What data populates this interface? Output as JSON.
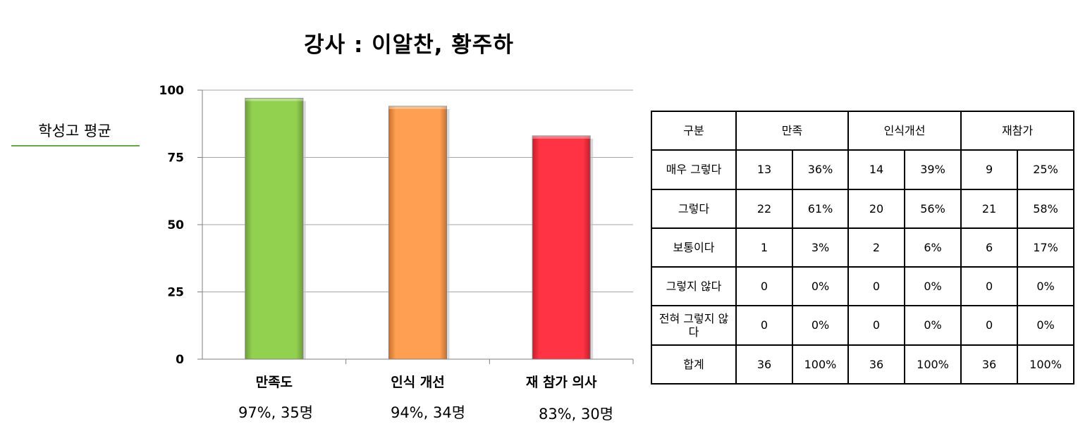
{
  "chart_data": {
    "type": "bar",
    "title": "강사 : 이알찬, 황주하",
    "legend_label": "학성고 평균",
    "categories": [
      "만족도",
      "인식 개선",
      "재 참가 의사"
    ],
    "values": [
      97,
      94,
      83
    ],
    "value_labels": [
      "97%, 35명",
      "94%, 34명",
      "83%, 30명"
    ],
    "colors": [
      "#92d050",
      "#f79646",
      "#ff3344"
    ],
    "ylim": [
      0,
      100
    ],
    "yticks": [
      "0",
      "25",
      "50",
      "75",
      "100"
    ],
    "grid": true
  },
  "table": {
    "header": [
      "구분",
      "만족",
      "인식개선",
      "재참가"
    ],
    "rows": [
      {
        "label": "매우 그렇다",
        "cells": [
          "13",
          "36%",
          "14",
          "39%",
          "9",
          "25%"
        ]
      },
      {
        "label": "그렇다",
        "cells": [
          "22",
          "61%",
          "20",
          "56%",
          "21",
          "58%"
        ]
      },
      {
        "label": "보통이다",
        "cells": [
          "1",
          "3%",
          "2",
          "6%",
          "6",
          "17%"
        ]
      },
      {
        "label": "그렇지 않다",
        "cells": [
          "0",
          "0%",
          "0",
          "0%",
          "0",
          "0%"
        ]
      },
      {
        "label": "전혀 그렇지 않다",
        "cells": [
          "0",
          "0%",
          "0",
          "0%",
          "0",
          "0%"
        ]
      },
      {
        "label": "합계",
        "cells": [
          "36",
          "100%",
          "36",
          "100%",
          "36",
          "100%"
        ]
      }
    ]
  }
}
